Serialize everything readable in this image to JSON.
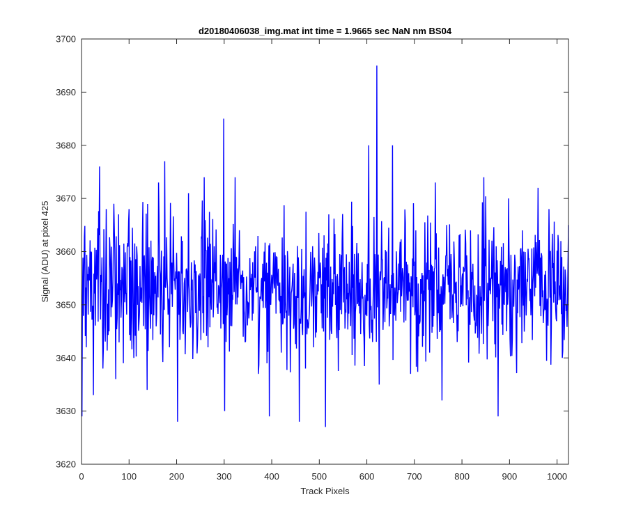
{
  "chart_data": {
    "type": "line",
    "title": "d20180406038_img.mat int time = 1.9665 sec  NaN nm BS04",
    "xlabel": "Track Pixels",
    "ylabel": "Signal (ADU) at pixel 425",
    "xlim": [
      0,
      1024
    ],
    "ylim": [
      3620,
      3700
    ],
    "x_ticks": [
      0,
      100,
      200,
      300,
      400,
      500,
      600,
      700,
      800,
      900,
      1000
    ],
    "y_ticks": [
      3620,
      3630,
      3640,
      3650,
      3660,
      3670,
      3680,
      3690,
      3700
    ],
    "grid": false,
    "legend": "none",
    "series": [
      {
        "color": "#0000ff",
        "x_start": 1,
        "x_step": 1,
        "anchors": [
          [
            1,
            3629
          ],
          [
            5,
            3656
          ],
          [
            10,
            3642
          ],
          [
            20,
            3660
          ],
          [
            25,
            3633
          ],
          [
            38,
            3676
          ],
          [
            45,
            3638
          ],
          [
            52,
            3668
          ],
          [
            58,
            3645
          ],
          [
            68,
            3669
          ],
          [
            72,
            3636
          ],
          [
            78,
            3667
          ],
          [
            88,
            3639
          ],
          [
            100,
            3668
          ],
          [
            110,
            3640
          ],
          [
            118,
            3650
          ],
          [
            130,
            3646
          ],
          [
            138,
            3634
          ],
          [
            152,
            3648
          ],
          [
            162,
            3673
          ],
          [
            170,
            3643
          ],
          [
            175,
            3677
          ],
          [
            185,
            3642
          ],
          [
            202,
            3628
          ],
          [
            215,
            3650
          ],
          [
            225,
            3671
          ],
          [
            235,
            3645
          ],
          [
            258,
            3674
          ],
          [
            266,
            3642
          ],
          [
            279,
            3661
          ],
          [
            299,
            3685
          ],
          [
            301,
            3630
          ],
          [
            310,
            3655
          ],
          [
            323,
            3674
          ],
          [
            340,
            3644
          ],
          [
            360,
            3658
          ],
          [
            372,
            3637
          ],
          [
            384,
            3660
          ],
          [
            395,
            3629
          ],
          [
            410,
            3659
          ],
          [
            420,
            3641
          ],
          [
            434,
            3658
          ],
          [
            448,
            3656
          ],
          [
            458,
            3628
          ],
          [
            471,
            3638
          ],
          [
            480,
            3651
          ],
          [
            488,
            3642
          ],
          [
            500,
            3655
          ],
          [
            513,
            3627
          ],
          [
            530,
            3652
          ],
          [
            548,
            3662
          ],
          [
            566,
            3646
          ],
          [
            590,
            3658
          ],
          [
            604,
            3680
          ],
          [
            612,
            3643
          ],
          [
            621,
            3695
          ],
          [
            626,
            3635
          ],
          [
            640,
            3654
          ],
          [
            654,
            3680
          ],
          [
            661,
            3647
          ],
          [
            676,
            3656
          ],
          [
            692,
            3637
          ],
          [
            703,
            3664
          ],
          [
            716,
            3656
          ],
          [
            732,
            3641
          ],
          [
            744,
            3673
          ],
          [
            758,
            3632
          ],
          [
            768,
            3665
          ],
          [
            778,
            3656
          ],
          [
            790,
            3643
          ],
          [
            806,
            3657
          ],
          [
            818,
            3664
          ],
          [
            830,
            3646
          ],
          [
            846,
            3674
          ],
          [
            860,
            3652
          ],
          [
            872,
            3661
          ],
          [
            876,
            3629
          ],
          [
            889,
            3650
          ],
          [
            898,
            3670
          ],
          [
            914,
            3643
          ],
          [
            930,
            3660
          ],
          [
            945,
            3648
          ],
          [
            960,
            3672
          ],
          [
            975,
            3649
          ],
          [
            983,
            3668
          ],
          [
            995,
            3652
          ],
          [
            1008,
            3662
          ],
          [
            1011,
            3640
          ],
          [
            1018,
            3655
          ],
          [
            1024,
            3665
          ]
        ]
      }
    ]
  }
}
